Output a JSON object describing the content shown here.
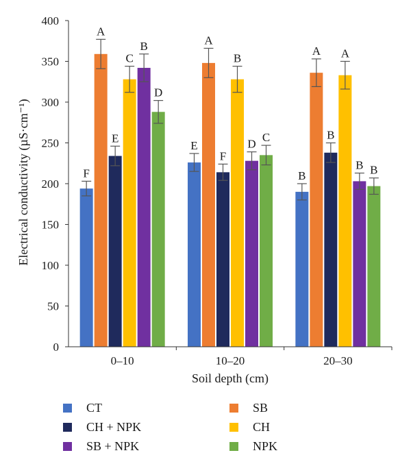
{
  "chart_data": {
    "type": "bar",
    "xlabel": "Soil depth (cm)",
    "ylabel": "Electrical conductivity (µS·cm⁻¹)",
    "ylim": [
      0,
      400
    ],
    "yticks": [
      0,
      50,
      100,
      150,
      200,
      250,
      300,
      350,
      400
    ],
    "grid": false,
    "legend_position": "bottom",
    "categories": [
      "0–10",
      "10–20",
      "20–30"
    ],
    "series": [
      {
        "name": "CT",
        "color": "#4472c4",
        "values": [
          194,
          226,
          190
        ],
        "errors": [
          9,
          11,
          10
        ],
        "labels": [
          "F",
          "E",
          "B"
        ]
      },
      {
        "name": "SB",
        "color": "#ed7d31",
        "values": [
          359,
          348,
          336
        ],
        "errors": [
          18,
          18,
          17
        ],
        "labels": [
          "A",
          "A",
          "A"
        ]
      },
      {
        "name": "CH + NPK",
        "color": "#1f2a5c",
        "values": [
          234,
          214,
          238
        ],
        "errors": [
          12,
          10,
          12
        ],
        "labels": [
          "E",
          "F",
          "B"
        ]
      },
      {
        "name": "CH",
        "color": "#ffc000",
        "values": [
          328,
          328,
          333
        ],
        "errors": [
          16,
          16,
          17
        ],
        "labels": [
          "C",
          "B",
          "A"
        ]
      },
      {
        "name": "SB + NPK",
        "color": "#7030a0",
        "values": [
          342,
          228,
          203
        ],
        "errors": [
          17,
          11,
          10
        ],
        "labels": [
          "B",
          "D",
          "B"
        ]
      },
      {
        "name": "NPK",
        "color": "#70ad47",
        "values": [
          288,
          235,
          197
        ],
        "errors": [
          14,
          12,
          10
        ],
        "labels": [
          "D",
          "C",
          "B"
        ]
      }
    ]
  }
}
